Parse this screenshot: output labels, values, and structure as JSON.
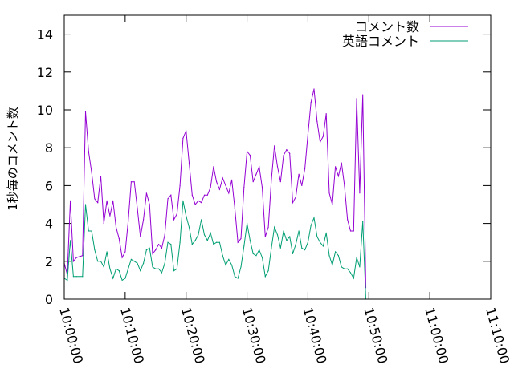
{
  "chart_data": {
    "type": "line",
    "ylabel": "1秒毎のコメント数",
    "xlabel": "",
    "ylim": [
      0,
      15
    ],
    "xlim": [
      "10:00:00",
      "11:10:00"
    ],
    "x_ticks": [
      "10:00:00",
      "10:10:00",
      "10:20:00",
      "10:30:00",
      "10:40:00",
      "10:50:00",
      "11:00:00",
      "11:10:00"
    ],
    "y_ticks": [
      0,
      2,
      4,
      6,
      8,
      10,
      12,
      14
    ],
    "grid": false,
    "legend_position": "top-right",
    "series": [
      {
        "name": "コメント数",
        "color": "#9400d3",
        "points": [
          [
            "10:00:00",
            1.9
          ],
          [
            "10:00:30",
            1.3
          ],
          [
            "10:01:00",
            5.2
          ],
          [
            "10:01:30",
            2.0
          ],
          [
            "10:02:00",
            2.2
          ],
          [
            "10:03:00",
            2.3
          ],
          [
            "10:03:30",
            9.9
          ],
          [
            "10:04:00",
            7.8
          ],
          [
            "10:04:30",
            6.7
          ],
          [
            "10:05:00",
            5.3
          ],
          [
            "10:05:30",
            5.1
          ],
          [
            "10:06:00",
            6.5
          ],
          [
            "10:06:30",
            4.0
          ],
          [
            "10:07:00",
            5.2
          ],
          [
            "10:07:30",
            4.4
          ],
          [
            "10:08:00",
            5.2
          ],
          [
            "10:08:30",
            3.8
          ],
          [
            "10:09:00",
            3.2
          ],
          [
            "10:09:30",
            2.2
          ],
          [
            "10:10:00",
            2.5
          ],
          [
            "10:10:30",
            4.1
          ],
          [
            "10:11:00",
            6.2
          ],
          [
            "10:11:30",
            6.2
          ],
          [
            "10:12:00",
            4.8
          ],
          [
            "10:12:30",
            3.3
          ],
          [
            "10:13:00",
            4.2
          ],
          [
            "10:13:30",
            5.6
          ],
          [
            "10:14:00",
            5.0
          ],
          [
            "10:14:30",
            2.4
          ],
          [
            "10:15:00",
            2.6
          ],
          [
            "10:15:30",
            2.9
          ],
          [
            "10:16:00",
            2.7
          ],
          [
            "10:16:30",
            3.4
          ],
          [
            "10:17:00",
            5.3
          ],
          [
            "10:17:30",
            5.5
          ],
          [
            "10:18:00",
            4.2
          ],
          [
            "10:18:30",
            4.5
          ],
          [
            "10:19:00",
            6.0
          ],
          [
            "10:19:30",
            8.5
          ],
          [
            "10:20:00",
            8.9
          ],
          [
            "10:20:30",
            7.2
          ],
          [
            "10:21:00",
            5.5
          ],
          [
            "10:21:30",
            5.0
          ],
          [
            "10:22:00",
            5.2
          ],
          [
            "10:22:30",
            5.1
          ],
          [
            "10:23:00",
            5.5
          ],
          [
            "10:23:30",
            5.5
          ],
          [
            "10:24:00",
            5.9
          ],
          [
            "10:24:30",
            7.0
          ],
          [
            "10:25:00",
            6.2
          ],
          [
            "10:25:30",
            5.8
          ],
          [
            "10:26:00",
            6.4
          ],
          [
            "10:26:30",
            6.0
          ],
          [
            "10:27:00",
            5.6
          ],
          [
            "10:27:30",
            6.3
          ],
          [
            "10:28:00",
            4.8
          ],
          [
            "10:28:30",
            3.0
          ],
          [
            "10:29:00",
            3.2
          ],
          [
            "10:29:30",
            5.9
          ],
          [
            "10:30:00",
            7.8
          ],
          [
            "10:30:30",
            7.6
          ],
          [
            "10:31:00",
            6.2
          ],
          [
            "10:31:30",
            6.6
          ],
          [
            "10:32:00",
            7.0
          ],
          [
            "10:32:30",
            5.9
          ],
          [
            "10:33:00",
            3.3
          ],
          [
            "10:33:30",
            3.8
          ],
          [
            "10:34:00",
            6.3
          ],
          [
            "10:34:30",
            8.1
          ],
          [
            "10:35:00",
            7.0
          ],
          [
            "10:35:30",
            6.2
          ],
          [
            "10:36:00",
            7.6
          ],
          [
            "10:36:30",
            7.9
          ],
          [
            "10:37:00",
            7.7
          ],
          [
            "10:37:30",
            5.1
          ],
          [
            "10:38:00",
            5.4
          ],
          [
            "10:38:30",
            6.6
          ],
          [
            "10:39:00",
            6.0
          ],
          [
            "10:39:30",
            6.9
          ],
          [
            "10:40:00",
            8.7
          ],
          [
            "10:40:30",
            10.4
          ],
          [
            "10:41:00",
            11.1
          ],
          [
            "10:41:30",
            9.4
          ],
          [
            "10:42:00",
            8.3
          ],
          [
            "10:42:30",
            8.6
          ],
          [
            "10:43:00",
            9.8
          ],
          [
            "10:43:30",
            5.6
          ],
          [
            "10:44:00",
            5.0
          ],
          [
            "10:44:30",
            7.0
          ],
          [
            "10:45:00",
            6.5
          ],
          [
            "10:45:30",
            7.2
          ],
          [
            "10:46:00",
            6.0
          ],
          [
            "10:46:30",
            4.2
          ],
          [
            "10:47:00",
            3.6
          ],
          [
            "10:47:30",
            3.6
          ],
          [
            "10:48:00",
            10.6
          ],
          [
            "10:48:30",
            5.6
          ],
          [
            "10:49:00",
            10.8
          ],
          [
            "10:49:30",
            0.6
          ]
        ]
      },
      {
        "name": "英語コメント",
        "color": "#009e73",
        "points": [
          [
            "10:00:00",
            1.1
          ],
          [
            "10:00:30",
            1.0
          ],
          [
            "10:01:00",
            3.1
          ],
          [
            "10:01:30",
            1.2
          ],
          [
            "10:02:00",
            1.2
          ],
          [
            "10:03:00",
            1.2
          ],
          [
            "10:03:30",
            5.0
          ],
          [
            "10:04:00",
            3.6
          ],
          [
            "10:04:30",
            3.6
          ],
          [
            "10:05:00",
            2.6
          ],
          [
            "10:05:30",
            2.0
          ],
          [
            "10:06:00",
            2.0
          ],
          [
            "10:06:30",
            1.7
          ],
          [
            "10:07:00",
            2.5
          ],
          [
            "10:07:30",
            1.6
          ],
          [
            "10:08:00",
            1.1
          ],
          [
            "10:08:30",
            1.6
          ],
          [
            "10:09:00",
            1.5
          ],
          [
            "10:09:30",
            1.0
          ],
          [
            "10:10:00",
            1.1
          ],
          [
            "10:10:30",
            1.6
          ],
          [
            "10:11:00",
            2.1
          ],
          [
            "10:11:30",
            2.0
          ],
          [
            "10:12:00",
            1.9
          ],
          [
            "10:12:30",
            1.5
          ],
          [
            "10:13:00",
            1.9
          ],
          [
            "10:13:30",
            2.6
          ],
          [
            "10:14:00",
            2.7
          ],
          [
            "10:14:30",
            1.7
          ],
          [
            "10:15:00",
            1.6
          ],
          [
            "10:15:30",
            1.6
          ],
          [
            "10:16:00",
            1.4
          ],
          [
            "10:16:30",
            1.9
          ],
          [
            "10:17:00",
            3.0
          ],
          [
            "10:17:30",
            2.9
          ],
          [
            "10:18:00",
            1.5
          ],
          [
            "10:18:30",
            1.6
          ],
          [
            "10:19:00",
            3.0
          ],
          [
            "10:19:30",
            5.2
          ],
          [
            "10:20:00",
            4.4
          ],
          [
            "10:20:30",
            3.8
          ],
          [
            "10:21:00",
            2.9
          ],
          [
            "10:21:30",
            3.1
          ],
          [
            "10:22:00",
            3.4
          ],
          [
            "10:22:30",
            4.2
          ],
          [
            "10:23:00",
            3.4
          ],
          [
            "10:23:30",
            3.1
          ],
          [
            "10:24:00",
            3.5
          ],
          [
            "10:24:30",
            2.9
          ],
          [
            "10:25:00",
            3.0
          ],
          [
            "10:25:30",
            3.0
          ],
          [
            "10:26:00",
            2.3
          ],
          [
            "10:26:30",
            1.8
          ],
          [
            "10:27:00",
            2.1
          ],
          [
            "10:27:30",
            1.8
          ],
          [
            "10:28:00",
            1.2
          ],
          [
            "10:28:30",
            1.1
          ],
          [
            "10:29:00",
            1.7
          ],
          [
            "10:29:30",
            2.8
          ],
          [
            "10:30:00",
            4.0
          ],
          [
            "10:30:30",
            3.1
          ],
          [
            "10:31:00",
            2.4
          ],
          [
            "10:31:30",
            2.3
          ],
          [
            "10:32:00",
            2.6
          ],
          [
            "10:32:30",
            2.2
          ],
          [
            "10:33:00",
            1.2
          ],
          [
            "10:33:30",
            1.5
          ],
          [
            "10:34:00",
            2.7
          ],
          [
            "10:34:30",
            3.8
          ],
          [
            "10:35:00",
            3.4
          ],
          [
            "10:35:30",
            2.7
          ],
          [
            "10:36:00",
            3.6
          ],
          [
            "10:36:30",
            3.1
          ],
          [
            "10:37:00",
            3.3
          ],
          [
            "10:37:30",
            2.4
          ],
          [
            "10:38:00",
            2.9
          ],
          [
            "10:38:30",
            3.6
          ],
          [
            "10:39:00",
            2.7
          ],
          [
            "10:39:30",
            2.6
          ],
          [
            "10:40:00",
            3.0
          ],
          [
            "10:40:30",
            3.9
          ],
          [
            "10:41:00",
            4.3
          ],
          [
            "10:41:30",
            3.3
          ],
          [
            "10:42:00",
            3.0
          ],
          [
            "10:42:30",
            2.8
          ],
          [
            "10:43:00",
            3.5
          ],
          [
            "10:43:30",
            2.3
          ],
          [
            "10:44:00",
            1.8
          ],
          [
            "10:44:30",
            2.5
          ],
          [
            "10:45:00",
            2.3
          ],
          [
            "10:45:30",
            1.7
          ],
          [
            "10:46:00",
            1.6
          ],
          [
            "10:46:30",
            1.6
          ],
          [
            "10:47:00",
            1.4
          ],
          [
            "10:47:30",
            1.1
          ],
          [
            "10:48:00",
            2.2
          ],
          [
            "10:48:30",
            1.7
          ],
          [
            "10:49:00",
            4.1
          ],
          [
            "10:49:30",
            0.0
          ]
        ]
      }
    ]
  }
}
